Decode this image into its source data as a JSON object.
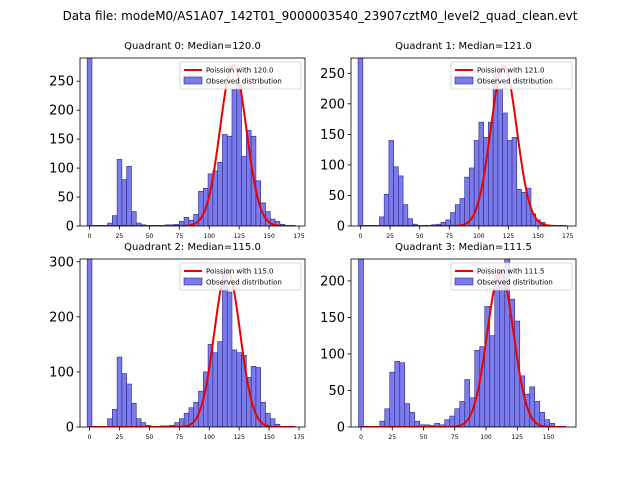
{
  "figure_title": "Data file: modeM0/AS1A07_142T01_9000003540_23907cztM0_level2_quad_clean.evt",
  "colors": {
    "bar_fill": "#7b7bea",
    "bar_edge": "#2a2a8a",
    "line": "#ee0000"
  },
  "chart_data": [
    {
      "type": "bar",
      "title": "Quadrant 0: Median=120.0",
      "legend": [
        "Poission with 120.0",
        "Observed distribution"
      ],
      "xlim": [
        -8,
        180
      ],
      "ylim": [
        0,
        290
      ],
      "xticks": [
        0,
        25,
        50,
        75,
        100,
        125,
        150,
        175
      ],
      "yticks": [
        0,
        50,
        100,
        150,
        200,
        250
      ],
      "bin_width": 4,
      "bar_x": [
        0,
        17,
        21,
        25,
        29,
        33,
        37,
        41,
        45,
        49,
        53,
        57,
        61,
        65,
        69,
        73,
        77,
        81,
        85,
        89,
        93,
        97,
        101,
        105,
        109,
        113,
        117,
        121,
        125,
        129,
        133,
        137,
        141,
        145,
        149,
        153,
        157,
        161,
        165
      ],
      "bar_values": [
        290,
        5,
        18,
        115,
        80,
        103,
        25,
        5,
        2,
        1,
        1,
        1,
        1,
        2,
        2,
        3,
        8,
        15,
        10,
        20,
        60,
        65,
        90,
        95,
        110,
        158,
        155,
        235,
        245,
        120,
        165,
        155,
        78,
        40,
        25,
        12,
        8,
        3,
        1
      ],
      "curve_mean": 120,
      "curve_peak": 278
    },
    {
      "type": "bar",
      "title": "Quadrant 1: Median=121.0",
      "legend": [
        "Poission with 121.0",
        "Observed distribution"
      ],
      "xlim": [
        -8,
        182
      ],
      "ylim": [
        0,
        275
      ],
      "xticks": [
        0,
        25,
        50,
        75,
        100,
        125,
        150,
        175
      ],
      "yticks": [
        0,
        50,
        100,
        150,
        200,
        250
      ],
      "bin_width": 4,
      "bar_x": [
        0,
        18,
        22,
        26,
        30,
        34,
        38,
        42,
        46,
        50,
        54,
        58,
        62,
        66,
        70,
        74,
        78,
        82,
        86,
        90,
        94,
        98,
        102,
        106,
        110,
        114,
        118,
        122,
        126,
        130,
        134,
        138,
        142,
        146,
        150,
        154,
        158
      ],
      "bar_values": [
        275,
        15,
        52,
        140,
        97,
        82,
        35,
        12,
        3,
        1,
        1,
        1,
        2,
        3,
        6,
        10,
        22,
        35,
        45,
        80,
        95,
        140,
        170,
        145,
        170,
        250,
        225,
        185,
        140,
        145,
        60,
        55,
        62,
        20,
        10,
        6,
        2
      ],
      "curve_mean": 121,
      "curve_peak": 262
    },
    {
      "type": "bar",
      "title": "Quadrant 2: Median=115.0",
      "legend": [
        "Poission with 115.0",
        "Observed distribution"
      ],
      "xlim": [
        -8,
        180
      ],
      "ylim": [
        0,
        305
      ],
      "xticks": [
        0,
        25,
        50,
        75,
        100,
        125,
        150,
        175
      ],
      "yticks": [
        0,
        100,
        200,
        300
      ],
      "bin_width": 4,
      "bar_x": [
        0,
        17,
        21,
        25,
        29,
        33,
        37,
        41,
        45,
        49,
        53,
        57,
        61,
        65,
        69,
        73,
        77,
        81,
        85,
        89,
        93,
        97,
        101,
        105,
        109,
        113,
        117,
        121,
        125,
        129,
        133,
        137,
        141,
        145,
        149,
        153,
        157
      ],
      "bar_values": [
        305,
        15,
        32,
        127,
        97,
        78,
        43,
        15,
        8,
        3,
        1,
        1,
        2,
        2,
        3,
        8,
        15,
        25,
        35,
        45,
        65,
        100,
        150,
        135,
        155,
        280,
        245,
        140,
        135,
        130,
        90,
        110,
        108,
        45,
        25,
        15,
        5
      ],
      "curve_mean": 115,
      "curve_peak": 285
    },
    {
      "type": "bar",
      "title": "Quadrant 3: Median=111.5",
      "legend": [
        "Poission with 111.5",
        "Observed distribution"
      ],
      "xlim": [
        -8,
        172
      ],
      "ylim": [
        0,
        230
      ],
      "xticks": [
        0,
        25,
        50,
        75,
        100,
        125,
        150
      ],
      "yticks": [
        0,
        50,
        100,
        150,
        200
      ],
      "bin_width": 4,
      "bar_x": [
        0,
        17,
        21,
        25,
        29,
        33,
        37,
        41,
        45,
        49,
        53,
        57,
        61,
        65,
        69,
        73,
        77,
        81,
        85,
        89,
        93,
        97,
        101,
        105,
        109,
        113,
        117,
        121,
        125,
        129,
        133,
        137,
        141,
        145,
        149,
        153
      ],
      "bar_values": [
        230,
        8,
        25,
        75,
        90,
        88,
        32,
        20,
        8,
        3,
        3,
        2,
        5,
        3,
        10,
        15,
        25,
        35,
        65,
        40,
        105,
        110,
        165,
        125,
        210,
        215,
        240,
        175,
        145,
        70,
        45,
        55,
        35,
        20,
        10,
        5
      ],
      "curve_mean": 111.5,
      "curve_peak": 212
    }
  ]
}
